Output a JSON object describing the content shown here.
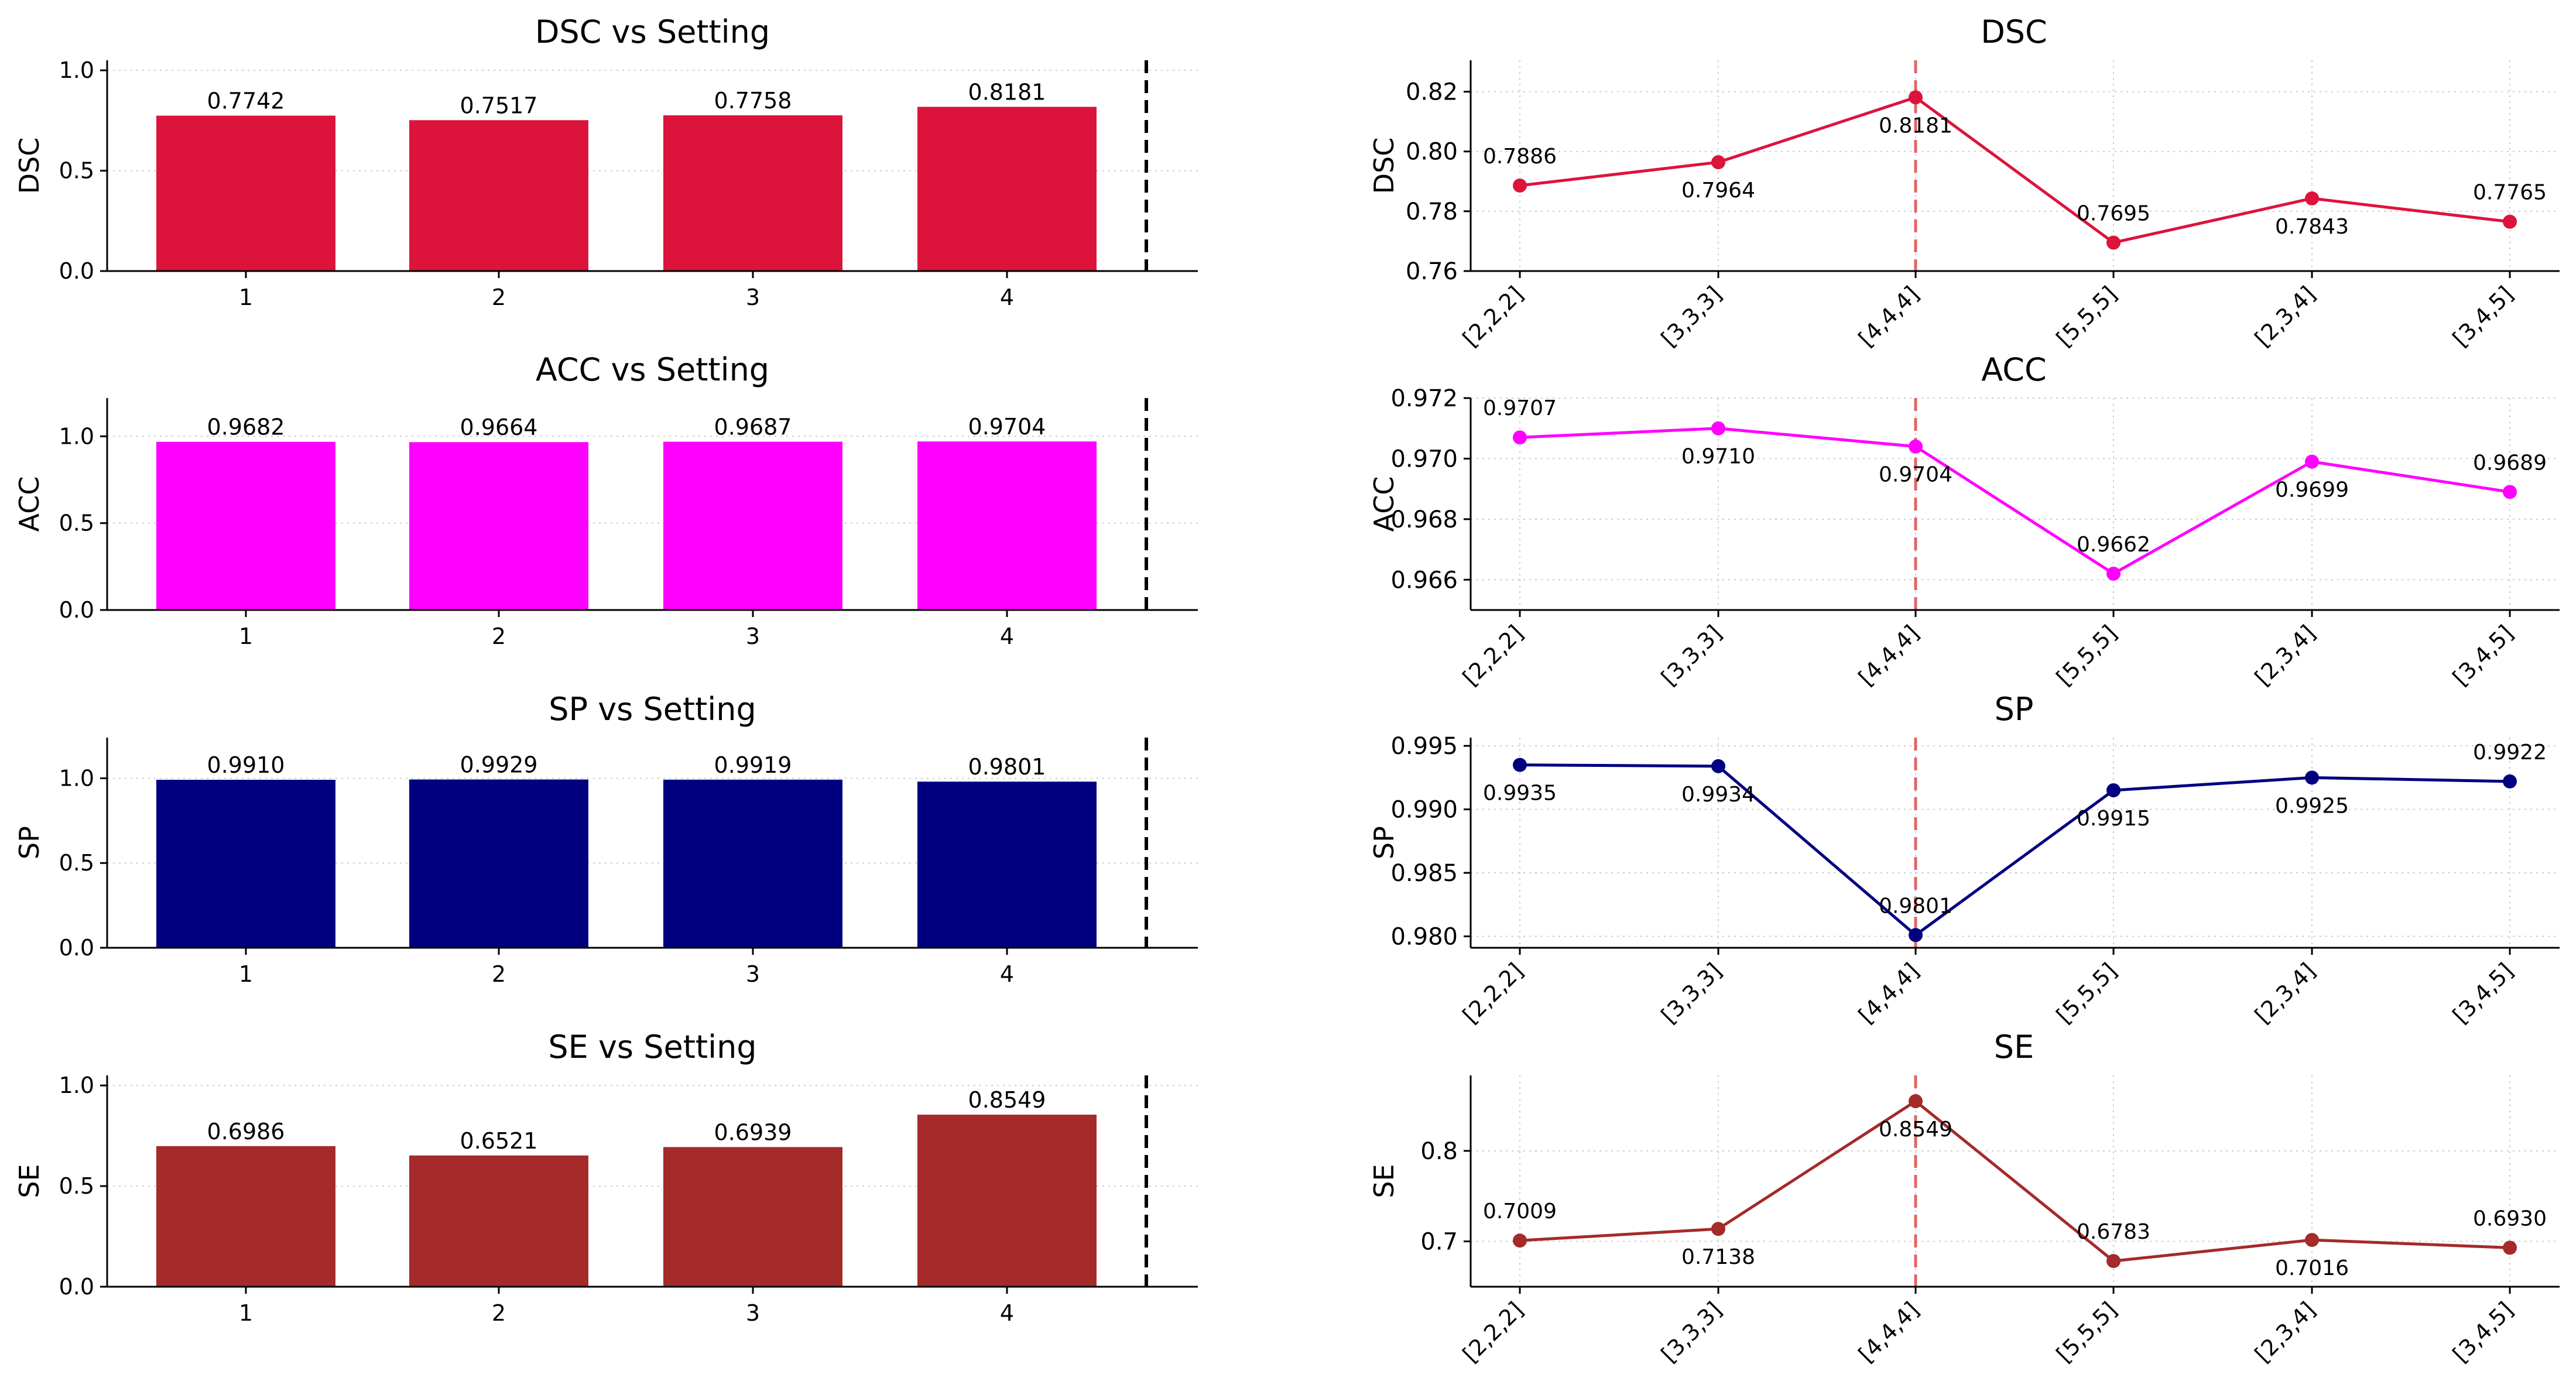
{
  "chart_data": [
    {
      "type": "bar",
      "title": "DSC vs Setting",
      "xlabel": "",
      "ylabel": "DSC",
      "categories": [
        "1",
        "2",
        "3",
        "4"
      ],
      "values": [
        0.7742,
        0.7517,
        0.7758,
        0.8181
      ],
      "value_labels": [
        "0.7742",
        "0.7517",
        "0.7758",
        "0.8181"
      ],
      "ylim": [
        0,
        1.05
      ],
      "yticks": [
        0.0,
        0.5,
        1.0
      ],
      "ytick_labels": [
        "0.0",
        "0.5",
        "1.0"
      ],
      "color": "#dc143c",
      "grid": "y",
      "marker_line": "dashed black vertical line after last bar"
    },
    {
      "type": "line",
      "title": "DSC",
      "xlabel": "",
      "ylabel": "DSC",
      "categories": [
        "[2,2,2]",
        "[3,3,3]",
        "[4,4,4]",
        "[5,5,5]",
        "[2,3,4]",
        "[3,4,5]"
      ],
      "values": [
        0.7886,
        0.7964,
        0.8181,
        0.7695,
        0.7843,
        0.7765
      ],
      "value_labels": [
        "0.7886",
        "0.7964",
        "0.8181",
        "0.7695",
        "0.7843",
        "0.7765"
      ],
      "ylim": [
        0.76,
        0.8305
      ],
      "yticks": [
        0.76,
        0.78,
        0.8,
        0.82
      ],
      "ytick_labels": [
        "0.76",
        "0.78",
        "0.80",
        "0.82"
      ],
      "color": "#dc143c",
      "highlight_category": "[4,4,4]",
      "grid": "both"
    },
    {
      "type": "bar",
      "title": "ACC vs Setting",
      "xlabel": "",
      "ylabel": "ACC",
      "categories": [
        "1",
        "2",
        "3",
        "4"
      ],
      "values": [
        0.9682,
        0.9664,
        0.9687,
        0.9704
      ],
      "value_labels": [
        "0.9682",
        "0.9664",
        "0.9687",
        "0.9704"
      ],
      "ylim": [
        0,
        1.22
      ],
      "yticks": [
        0.0,
        0.5,
        1.0
      ],
      "ytick_labels": [
        "0.0",
        "0.5",
        "1.0"
      ],
      "color": "#ff00ff",
      "grid": "y",
      "marker_line": "dashed black vertical line after last bar"
    },
    {
      "type": "line",
      "title": "ACC",
      "xlabel": "",
      "ylabel": "ACC",
      "categories": [
        "[2,2,2]",
        "[3,3,3]",
        "[4,4,4]",
        "[5,5,5]",
        "[2,3,4]",
        "[3,4,5]"
      ],
      "values": [
        0.9707,
        0.971,
        0.9704,
        0.9662,
        0.9699,
        0.9689
      ],
      "value_labels": [
        "0.9707",
        "0.9710",
        "0.9704",
        "0.9662",
        "0.9699",
        "0.9689"
      ],
      "ylim": [
        0.965,
        0.972
      ],
      "yticks": [
        0.966,
        0.968,
        0.97,
        0.972
      ],
      "ytick_labels": [
        "0.966",
        "0.968",
        "0.970",
        "0.972"
      ],
      "color": "#ff00ff",
      "highlight_category": "[4,4,4]",
      "grid": "both"
    },
    {
      "type": "bar",
      "title": "SP vs Setting",
      "xlabel": "",
      "ylabel": "SP",
      "categories": [
        "1",
        "2",
        "3",
        "4"
      ],
      "values": [
        0.991,
        0.9929,
        0.9919,
        0.9801
      ],
      "value_labels": [
        "0.9910",
        "0.9929",
        "0.9919",
        "0.9801"
      ],
      "ylim": [
        0,
        1.24
      ],
      "yticks": [
        0.0,
        0.5,
        1.0
      ],
      "ytick_labels": [
        "0.0",
        "0.5",
        "1.0"
      ],
      "color": "#000080",
      "grid": "y",
      "marker_line": "dashed black vertical line after last bar"
    },
    {
      "type": "line",
      "title": "SP",
      "xlabel": "",
      "ylabel": "SP",
      "categories": [
        "[2,2,2]",
        "[3,3,3]",
        "[4,4,4]",
        "[5,5,5]",
        "[2,3,4]",
        "[3,4,5]"
      ],
      "values": [
        0.9935,
        0.9934,
        0.9801,
        0.9915,
        0.9925,
        0.9922
      ],
      "value_labels": [
        "0.9935",
        "0.9934",
        "0.9801",
        "0.9915",
        "0.9925",
        "0.9922"
      ],
      "ylim": [
        0.9791,
        0.99565
      ],
      "yticks": [
        0.98,
        0.985,
        0.99,
        0.995
      ],
      "ytick_labels": [
        "0.980",
        "0.985",
        "0.990",
        "0.995"
      ],
      "color": "#000080",
      "highlight_category": "[4,4,4]",
      "grid": "both"
    },
    {
      "type": "bar",
      "title": "SE vs Setting",
      "xlabel": "",
      "ylabel": "SE",
      "categories": [
        "1",
        "2",
        "3",
        "4"
      ],
      "values": [
        0.6986,
        0.6521,
        0.6939,
        0.8549
      ],
      "value_labels": [
        "0.6986",
        "0.6521",
        "0.6939",
        "0.8549"
      ],
      "ylim": [
        0,
        1.05
      ],
      "yticks": [
        0.0,
        0.5,
        1.0
      ],
      "ytick_labels": [
        "0.0",
        "0.5",
        "1.0"
      ],
      "color": "#a52a2a",
      "grid": "y",
      "marker_line": "dashed black vertical line after last bar"
    },
    {
      "type": "line",
      "title": "SE",
      "xlabel": "",
      "ylabel": "SE",
      "categories": [
        "[2,2,2]",
        "[3,3,3]",
        "[4,4,4]",
        "[5,5,5]",
        "[2,3,4]",
        "[3,4,5]"
      ],
      "values": [
        0.7009,
        0.7138,
        0.8549,
        0.6783,
        0.7016,
        0.693
      ],
      "value_labels": [
        "0.7009",
        "0.7138",
        "0.8549",
        "0.6783",
        "0.7016",
        "0.6930"
      ],
      "ylim": [
        0.6499,
        0.8834
      ],
      "yticks": [
        0.7,
        0.8
      ],
      "ytick_labels": [
        "0.7",
        "0.8"
      ],
      "color": "#a52a2a",
      "highlight_category": "[4,4,4]",
      "grid": "both"
    }
  ]
}
